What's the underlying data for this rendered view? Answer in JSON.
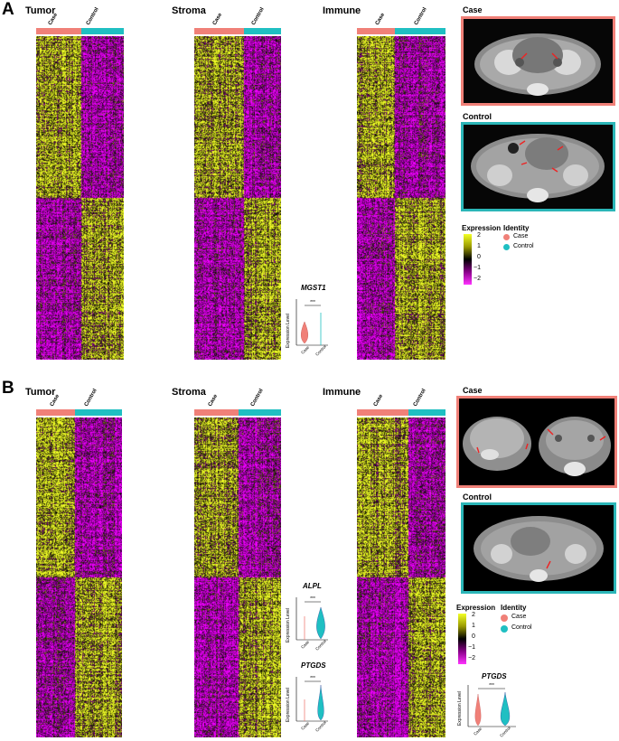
{
  "panels": [
    {
      "label": "A",
      "heatmaps": [
        {
          "title": "Tumor",
          "groups": [
            "Case",
            "Control"
          ]
        },
        {
          "title": "Stroma",
          "groups": [
            "Case",
            "Control"
          ]
        },
        {
          "title": "Immune",
          "groups": [
            "Case",
            "Control"
          ]
        }
      ],
      "ct_case_label": "Case",
      "ct_control_label": "Control",
      "violins": [
        {
          "gene": "MGST1",
          "ylabel": "Expression Level",
          "sig": "***",
          "x": [
            "Case",
            "Control"
          ]
        }
      ]
    },
    {
      "label": "B",
      "heatmaps": [
        {
          "title": "Tumor",
          "groups": [
            "Case",
            "Control"
          ]
        },
        {
          "title": "Stroma",
          "groups": [
            "Case",
            "Control"
          ]
        },
        {
          "title": "Immune",
          "groups": [
            "Case",
            "Control"
          ]
        }
      ],
      "ct_case_label": "Case",
      "ct_control_label": "Control",
      "violins": [
        {
          "gene": "ALPL",
          "ylabel": "Expression Level",
          "sig": "***",
          "x": [
            "Case",
            "Control"
          ]
        },
        {
          "gene": "PTGDS",
          "ylabel": "Expression Level",
          "sig": "***",
          "x": [
            "Case",
            "Control"
          ]
        },
        {
          "gene": "PTGDS",
          "ylabel": "Expression Level",
          "sig": "***",
          "x": [
            "Case",
            "Control"
          ]
        }
      ]
    }
  ],
  "legend": {
    "expression_title": "Expression",
    "expression_ticks": [
      "2",
      "1",
      "0",
      "−1",
      "−2"
    ],
    "identity_title": "Identity",
    "identity_items": [
      "Case",
      "Control"
    ]
  },
  "colors": {
    "case": "#f08078",
    "control": "#1fbfc2",
    "case_border": "#f08078",
    "control_border": "#2bb6b8"
  }
}
